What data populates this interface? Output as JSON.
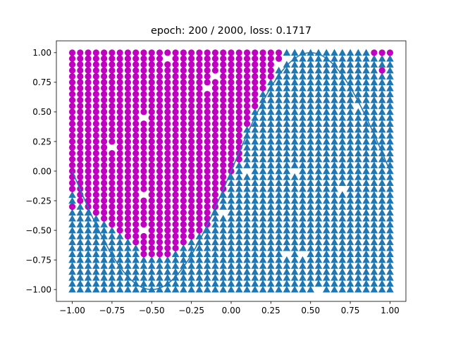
{
  "chart_data": {
    "type": "scatter",
    "title": "epoch: 200 / 2000, loss: 0.1717",
    "xlabel": "",
    "ylabel": "",
    "xlim": [
      -1.1,
      1.1
    ],
    "ylim": [
      -1.1,
      1.1
    ],
    "x_ticks": [
      -1.0,
      -0.75,
      -0.5,
      -0.25,
      0.0,
      0.25,
      0.5,
      0.75,
      1.0
    ],
    "x_tick_labels": [
      "−1.00",
      "−0.75",
      "−0.50",
      "−0.25",
      "0.00",
      "0.25",
      "0.50",
      "0.75",
      "1.00"
    ],
    "y_ticks": [
      -1.0,
      -0.75,
      -0.5,
      -0.25,
      0.0,
      0.25,
      0.5,
      0.75,
      1.0
    ],
    "y_tick_labels": [
      "−1.00",
      "−0.75",
      "−0.50",
      "−0.25",
      "0.00",
      "0.25",
      "0.50",
      "0.75",
      "1.00"
    ],
    "grid": false,
    "grid_points": {
      "x_start": -1.0,
      "x_end": 1.0,
      "x_count": 41,
      "y_start": -1.0,
      "y_end": 1.0,
      "y_count": 41
    },
    "curve": {
      "function": "sin(pi * x)",
      "x_range": [
        -1.0,
        1.0
      ],
      "color": "#1f77b4"
    },
    "series": [
      {
        "marker": "circle",
        "color": "#c000c0"
      },
      {
        "marker": "triangle-up",
        "color": "#1f77b4"
      }
    ],
    "circle_region": {
      "rows": [
        {
          "y": 1.0,
          "x_min": -1.0,
          "x_max": 0.3
        },
        {
          "y": 0.95,
          "x_min": -1.0,
          "x_max": 0.3
        },
        {
          "y": 0.9,
          "x_min": -1.0,
          "x_max": 0.25
        },
        {
          "y": 0.85,
          "x_min": -1.0,
          "x_max": 0.25
        },
        {
          "y": 0.8,
          "x_min": -1.0,
          "x_max": 0.25
        },
        {
          "y": 0.75,
          "x_min": -1.0,
          "x_max": 0.2
        },
        {
          "y": 0.7,
          "x_min": -1.0,
          "x_max": 0.2
        },
        {
          "y": 0.65,
          "x_min": -1.0,
          "x_max": 0.15
        },
        {
          "y": 0.6,
          "x_min": -1.0,
          "x_max": 0.15
        },
        {
          "y": 0.55,
          "x_min": -1.0,
          "x_max": 0.15
        },
        {
          "y": 0.5,
          "x_min": -1.0,
          "x_max": 0.1
        },
        {
          "y": 0.45,
          "x_min": -1.0,
          "x_max": 0.1
        },
        {
          "y": 0.4,
          "x_min": -1.0,
          "x_max": 0.1
        },
        {
          "y": 0.35,
          "x_min": -1.0,
          "x_max": 0.05
        },
        {
          "y": 0.3,
          "x_min": -1.0,
          "x_max": 0.05
        },
        {
          "y": 0.25,
          "x_min": -1.0,
          "x_max": 0.05
        },
        {
          "y": 0.2,
          "x_min": -1.0,
          "x_max": 0.05
        },
        {
          "y": 0.15,
          "x_min": -1.0,
          "x_max": 0.05
        },
        {
          "y": 0.1,
          "x_min": -1.0,
          "x_max": 0.05
        },
        {
          "y": 0.05,
          "x_min": -1.0,
          "x_max": 0.0
        },
        {
          "y": 0.0,
          "x_min": -1.0,
          "x_max": 0.0
        },
        {
          "y": -0.05,
          "x_min": -1.0,
          "x_max": -0.05
        },
        {
          "y": -0.1,
          "x_min": -1.0,
          "x_max": -0.05
        },
        {
          "y": -0.15,
          "x_min": -1.0,
          "x_max": -0.05
        },
        {
          "y": -0.2,
          "x_min": -0.95,
          "x_max": -0.1
        },
        {
          "y": -0.25,
          "x_min": -0.95,
          "x_max": -0.1
        },
        {
          "y": -0.3,
          "x_min": -0.9,
          "x_max": -0.1
        },
        {
          "y": -0.35,
          "x_min": -0.85,
          "x_max": -0.15
        },
        {
          "y": -0.4,
          "x_min": -0.8,
          "x_max": -0.15
        },
        {
          "y": -0.45,
          "x_min": -0.75,
          "x_max": -0.15
        },
        {
          "y": -0.5,
          "x_min": -0.7,
          "x_max": -0.2
        },
        {
          "y": -0.55,
          "x_min": -0.65,
          "x_max": -0.25
        },
        {
          "y": -0.6,
          "x_min": -0.6,
          "x_max": -0.3
        },
        {
          "y": -0.65,
          "x_min": -0.55,
          "x_max": -0.35
        },
        {
          "y": -0.7,
          "x_min": -0.55,
          "x_max": -0.4
        }
      ],
      "extra_circles": [
        [
          0.9,
          1.0
        ],
        [
          0.95,
          1.0
        ],
        [
          1.0,
          1.0
        ],
        [
          0.95,
          0.85
        ],
        [
          -1.0,
          -0.3
        ]
      ]
    },
    "missing_points": [
      [
        -0.4,
        0.95
      ],
      [
        -0.55,
        0.45
      ],
      [
        -0.75,
        0.2
      ],
      [
        -0.55,
        -0.2
      ],
      [
        -0.55,
        -0.5
      ],
      [
        -0.15,
        0.7
      ],
      [
        -0.1,
        0.8
      ],
      [
        0.35,
        0.95
      ],
      [
        0.3,
        0.9
      ],
      [
        0.1,
        0.0
      ],
      [
        0.4,
        0.0
      ],
      [
        0.7,
        -0.15
      ],
      [
        -0.05,
        -0.35
      ],
      [
        0.45,
        -0.7
      ],
      [
        0.35,
        -0.7
      ],
      [
        0.55,
        -1.0
      ],
      [
        0.8,
        0.55
      ]
    ]
  }
}
